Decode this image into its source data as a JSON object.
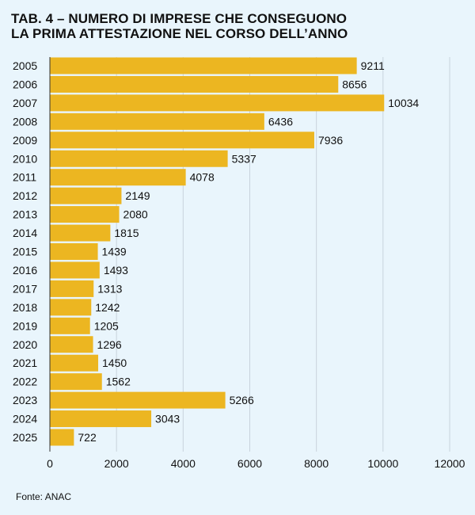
{
  "header": {
    "title_line1": "TAB. 4 – NUMERO DI IMPRESE CHE CONSEGUONO",
    "title_line2": "LA PRIMA ATTESTAZIONE NEL CORSO DELL’ANNO"
  },
  "footer": {
    "source": "Fonte: ANAC"
  },
  "chart_data": {
    "type": "bar",
    "orientation": "horizontal",
    "title": "TAB. 4 – NUMERO DI IMPRESE CHE CONSEGUONO LA PRIMA ATTESTAZIONE NEL CORSO DELL’ANNO",
    "categories": [
      "2005",
      "2006",
      "2007",
      "2008",
      "2009",
      "2010",
      "2011",
      "2012",
      "2013",
      "2014",
      "2015",
      "2016",
      "2017",
      "2018",
      "2019",
      "2020",
      "2021",
      "2022",
      "2023",
      "2024",
      "2025"
    ],
    "values": [
      9211,
      8656,
      10034,
      6436,
      7936,
      5337,
      4078,
      2149,
      2080,
      1815,
      1439,
      1493,
      1313,
      1242,
      1205,
      1296,
      1450,
      1562,
      5266,
      3043,
      722
    ],
    "xlim": [
      0,
      12000
    ],
    "xticks": [
      0,
      2000,
      4000,
      6000,
      8000,
      10000,
      12000
    ],
    "xlabel": "",
    "ylabel": "",
    "grid": true,
    "data_labels": true,
    "colors": {
      "bar": "#ecb621",
      "grid": "#c8d2dc",
      "background": "#e9f5fc"
    }
  }
}
